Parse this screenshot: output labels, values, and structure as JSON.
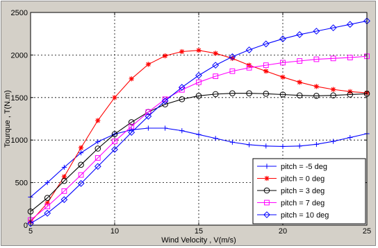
{
  "chart_data": {
    "type": "line",
    "xlabel": "Wind Velocity , V(m/s)",
    "ylabel": "Tourque , T(N.m)",
    "xlim": [
      5,
      25
    ],
    "ylim": [
      0,
      2500
    ],
    "xticks": [
      5,
      10,
      15,
      20,
      25
    ],
    "yticks": [
      0,
      500,
      1000,
      1500,
      2000,
      2500
    ],
    "grid": true,
    "legend_position": "bottom-right",
    "x": [
      5,
      6,
      7,
      8,
      9,
      10,
      11,
      12,
      13,
      14,
      15,
      16,
      17,
      18,
      19,
      20,
      21,
      22,
      23,
      24,
      25
    ],
    "series": [
      {
        "name": "pitch = -5 deg",
        "color": "#0000ff",
        "marker": "plus",
        "values": [
          330,
          500,
          680,
          850,
          980,
          1070,
          1120,
          1140,
          1140,
          1110,
          1065,
          1020,
          975,
          945,
          930,
          925,
          930,
          950,
          985,
          1030,
          1075
        ]
      },
      {
        "name": "pitch = 0 deg",
        "color": "#ff0000",
        "marker": "star",
        "values": [
          40,
          260,
          570,
          910,
          1230,
          1500,
          1720,
          1890,
          1990,
          2040,
          2055,
          2020,
          1960,
          1880,
          1810,
          1740,
          1680,
          1630,
          1595,
          1570,
          1555
        ]
      },
      {
        "name": "pitch = 3 deg",
        "color": "#000000",
        "marker": "circle",
        "values": [
          160,
          320,
          520,
          710,
          900,
          1070,
          1210,
          1330,
          1420,
          1480,
          1520,
          1540,
          1550,
          1550,
          1545,
          1535,
          1525,
          1520,
          1525,
          1535,
          1545
        ]
      },
      {
        "name": "pitch = 7 deg",
        "color": "#ff00ff",
        "marker": "square",
        "values": [
          60,
          220,
          400,
          590,
          790,
          985,
          1160,
          1330,
          1480,
          1590,
          1680,
          1750,
          1810,
          1850,
          1880,
          1910,
          1930,
          1950,
          1960,
          1970,
          1985
        ]
      },
      {
        "name": "pitch = 10 deg",
        "color": "#0000ff",
        "marker": "diamond",
        "values": [
          20,
          140,
          300,
          490,
          690,
          890,
          1090,
          1280,
          1460,
          1620,
          1760,
          1880,
          1980,
          2060,
          2130,
          2190,
          2240,
          2280,
          2320,
          2360,
          2400
        ]
      }
    ]
  }
}
